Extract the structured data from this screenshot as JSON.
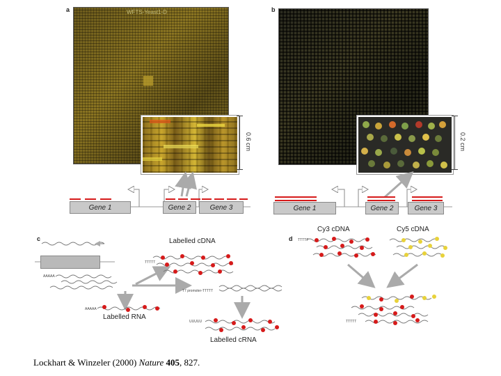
{
  "panels": {
    "a": {
      "letter": "a",
      "chip_label": "WFTS-Yeast1-D",
      "scale": "0.6 cm"
    },
    "b": {
      "letter": "b",
      "scale": "0.2 cm"
    },
    "c": {
      "letter": "c",
      "labelled_cdna": "Labelled cDNA",
      "labelled_rna": "Labelled RNA",
      "labelled_crna": "Labelled cRNA",
      "promoter": "T7 promoter-TTTTT",
      "polya": "AAAAA",
      "polyt": "TTTTT",
      "polyu": "UUUUU"
    },
    "d": {
      "letter": "d",
      "cy3": "Cy3 cDNA",
      "cy5": "Cy5 cDNA",
      "polyt": "TTTTT"
    }
  },
  "genes": {
    "gene1": "Gene 1",
    "gene2": "Gene 2",
    "gene3": "Gene 3"
  },
  "caption": {
    "authors": "Lockhart & Winzeler (2000) ",
    "journal": "Nature",
    "volume": "405",
    "pages": ", 827."
  },
  "colors": {
    "red": "#d61a1a",
    "yellow": "#e8d23a",
    "arrow": "#aaaaaa"
  }
}
